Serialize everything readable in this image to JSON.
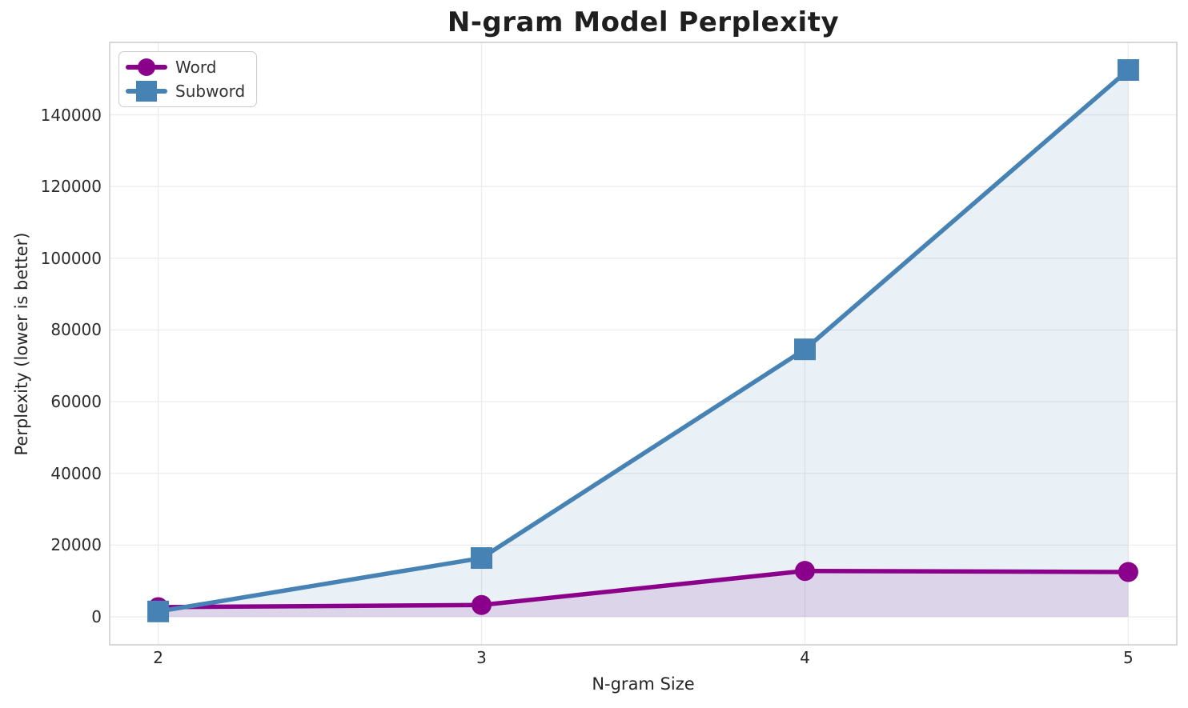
{
  "chart_data": {
    "type": "line",
    "title": "N-gram Model Perplexity",
    "xlabel": "N-gram Size",
    "ylabel": "Perplexity (lower is better)",
    "x": [
      2,
      3,
      4,
      5
    ],
    "series": [
      {
        "name": "Word",
        "color": "#8B008B",
        "marker": "circle",
        "values": [
          2700,
          3300,
          12800,
          12500
        ]
      },
      {
        "name": "Subword",
        "color": "#4682B4",
        "marker": "square",
        "values": [
          1500,
          16400,
          74600,
          152500
        ]
      }
    ],
    "xticks": [
      2,
      3,
      4,
      5
    ],
    "yticks": [
      0,
      20000,
      40000,
      60000,
      80000,
      100000,
      120000,
      140000
    ],
    "xlim": [
      1.85,
      5.15
    ],
    "ylim": [
      -7800,
      160200
    ],
    "grid": true,
    "grid_color": "#ececec",
    "spine_color": "#cccccc",
    "fill_to_zero": true,
    "fill_opacity": 0.12,
    "legend_position": "upper left"
  }
}
